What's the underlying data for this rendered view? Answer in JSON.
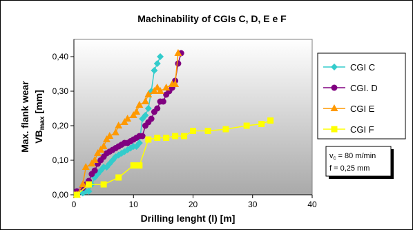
{
  "chart_data": {
    "type": "line",
    "title": "Machinability of CGIs C, D, E e F",
    "xlabel": "Drilling lenght (l) [m]",
    "ylabel_line1": "Max. flank wear",
    "ylabel_line2_main": "VB",
    "ylabel_line2_sub": "max",
    "ylabel_line2_unit": " [mm]",
    "xlim": [
      0,
      40
    ],
    "ylim": [
      0,
      0.45
    ],
    "xticks": [
      "0",
      "10",
      "20",
      "30",
      "40"
    ],
    "yticks": [
      "0,00",
      "0,10",
      "0,20",
      "0,30",
      "0,40"
    ],
    "grid": false,
    "legend_position": "right",
    "series": [
      {
        "name": "CGI C",
        "color": "#33CCCC",
        "marker": "diamond",
        "x": [
          0.5,
          1.5,
          2.0,
          2.5,
          3.0,
          3.5,
          4.0,
          4.5,
          5.0,
          5.5,
          6.0,
          6.5,
          7.0,
          7.5,
          8.0,
          8.5,
          9.0,
          9.5,
          10.0,
          10.5,
          11.0,
          11.5,
          12.0,
          12.5,
          13.0,
          13.5,
          14.0,
          14.5
        ],
        "y": [
          0.0,
          0.005,
          0.01,
          0.01,
          0.03,
          0.05,
          0.06,
          0.07,
          0.08,
          0.08,
          0.09,
          0.1,
          0.11,
          0.115,
          0.12,
          0.125,
          0.13,
          0.135,
          0.14,
          0.14,
          0.15,
          0.22,
          0.23,
          0.25,
          0.3,
          0.36,
          0.38,
          0.4
        ]
      },
      {
        "name": "CGI. D",
        "color": "#800080",
        "marker": "circle",
        "x": [
          0.5,
          1.5,
          2.0,
          2.5,
          3.0,
          3.5,
          4.0,
          4.5,
          5.0,
          5.5,
          6.0,
          6.5,
          7.0,
          7.5,
          8.0,
          8.5,
          9.0,
          9.5,
          10.0,
          10.5,
          11.0,
          11.5,
          12.0,
          12.5,
          13.0,
          13.5,
          14.0,
          14.5,
          15.0,
          15.5,
          16.0,
          16.5,
          17.0,
          17.5,
          18.0
        ],
        "y": [
          0.01,
          0.02,
          0.03,
          0.04,
          0.06,
          0.07,
          0.09,
          0.1,
          0.11,
          0.12,
          0.125,
          0.13,
          0.135,
          0.14,
          0.145,
          0.15,
          0.15,
          0.155,
          0.16,
          0.165,
          0.17,
          0.17,
          0.2,
          0.21,
          0.22,
          0.24,
          0.25,
          0.27,
          0.27,
          0.29,
          0.3,
          0.31,
          0.33,
          0.38,
          0.41
        ]
      },
      {
        "name": "CGI E",
        "color": "#FF9900",
        "marker": "triangle",
        "x": [
          0.5,
          1.5,
          2.0,
          3.0,
          3.5,
          4.0,
          4.5,
          5.0,
          5.5,
          6.0,
          7.0,
          7.5,
          8.5,
          9.0,
          10.0,
          10.5,
          11.0,
          12.0,
          12.5,
          13.5,
          14.0,
          14.5,
          15.5,
          16.5,
          17.0,
          17.5
        ],
        "y": [
          0.0,
          0.03,
          0.08,
          0.09,
          0.1,
          0.12,
          0.13,
          0.14,
          0.16,
          0.17,
          0.18,
          0.2,
          0.21,
          0.22,
          0.23,
          0.24,
          0.26,
          0.27,
          0.29,
          0.3,
          0.31,
          0.3,
          0.31,
          0.32,
          0.32,
          0.41
        ]
      },
      {
        "name": "CGI F",
        "color": "#FFFF00",
        "marker": "square",
        "x": [
          0.5,
          2.5,
          5.0,
          7.5,
          10.0,
          11.0,
          12.5,
          14.0,
          15.5,
          17.0,
          18.5,
          20.0,
          22.5,
          25.5,
          29.0,
          31.5,
          33.0
        ],
        "y": [
          0.0,
          0.03,
          0.03,
          0.05,
          0.085,
          0.085,
          0.16,
          0.165,
          0.165,
          0.17,
          0.17,
          0.185,
          0.185,
          0.19,
          0.2,
          0.205,
          0.215
        ]
      }
    ],
    "annotation": {
      "vc_symbol": "v",
      "vc_sub": "c",
      "vc_text": " = 80 m/min",
      "f_text": "f = 0,25 mm"
    }
  }
}
